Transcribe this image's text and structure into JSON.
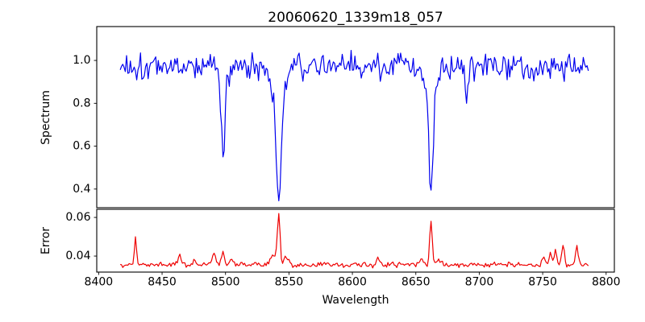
{
  "figure": {
    "title": "20060620_1339m18_057",
    "background": "#ffffff",
    "spine_color": "#000000",
    "tick_color": "#000000"
  },
  "chart_data": [
    {
      "type": "line",
      "title": "20060620_1339m18_057",
      "ylabel": "Spectrum",
      "series_name": "spectrum",
      "line_color": "#0000ee",
      "xlim": [
        8398.5,
        8806.5
      ],
      "ylim": [
        0.313,
        1.158
      ],
      "yticks": {
        "values": [
          0.4,
          0.6,
          0.8,
          1.0
        ],
        "labels": [
          "0.4",
          "0.6",
          "0.8",
          "1.0"
        ]
      },
      "x_start": 8417,
      "x_end": 8786,
      "x_step": 1,
      "continuum": 0.975,
      "noise_sigma": 0.03,
      "seed": 1337,
      "absorption_lines": [
        {
          "name": "Ca II 8498",
          "center": 8498,
          "core_depth": 0.31,
          "core_sigma": 1.3,
          "wing_depth": 0.12,
          "wing_sigma": 2.6,
          "min_value": 0.55
        },
        {
          "name": "Ca II 8542",
          "center": 8542,
          "core_depth": 0.43,
          "core_sigma": 1.7,
          "wing_depth": 0.21,
          "wing_sigma": 4.5,
          "min_value": 0.345
        },
        {
          "name": "Ca II 8662",
          "center": 8662,
          "core_depth": 0.4,
          "core_sigma": 1.6,
          "wing_depth": 0.19,
          "wing_sigma": 4.0,
          "min_value": 0.395
        },
        {
          "name": "line 8690",
          "center": 8690,
          "core_depth": 0.17,
          "core_sigma": 1.2,
          "wing_depth": 0.0,
          "wing_sigma": 1.0,
          "min_value": 0.8
        }
      ],
      "grid": false,
      "legend": null
    },
    {
      "type": "line",
      "ylabel": "Error",
      "xlabel": "Wavelength",
      "series_name": "error",
      "line_color": "#ee0000",
      "xlim": [
        8398.5,
        8806.5
      ],
      "ylim": [
        0.0317,
        0.0642
      ],
      "yticks": {
        "values": [
          0.04,
          0.06
        ],
        "labels": [
          "0.04",
          "0.06"
        ]
      },
      "xticks": {
        "values": [
          8400,
          8450,
          8500,
          8550,
          8600,
          8650,
          8700,
          8750,
          8800
        ],
        "labels": [
          "8400",
          "8450",
          "8500",
          "8550",
          "8600",
          "8650",
          "8700",
          "8750",
          "8800"
        ]
      },
      "x_start": 8417,
      "x_end": 8786,
      "x_step": 1,
      "baseline": 0.0355,
      "noise_sigma": 0.0007,
      "seed": 99,
      "peaks": [
        {
          "center": 8429,
          "height": 0.0145,
          "sigma": 0.8
        },
        {
          "center": 8464,
          "height": 0.0055,
          "sigma": 1.0
        },
        {
          "center": 8475,
          "height": 0.0028,
          "sigma": 1.0
        },
        {
          "center": 8491,
          "height": 0.006,
          "sigma": 1.4
        },
        {
          "center": 8498,
          "height": 0.007,
          "sigma": 1.2
        },
        {
          "center": 8505,
          "height": 0.0028,
          "sigma": 1.2
        },
        {
          "center": 8538,
          "height": 0.0045,
          "sigma": 2.5
        },
        {
          "center": 8542,
          "height": 0.0265,
          "sigma": 1.0
        },
        {
          "center": 8548,
          "height": 0.0035,
          "sigma": 2.0
        },
        {
          "center": 8620,
          "height": 0.004,
          "sigma": 1.2
        },
        {
          "center": 8655,
          "height": 0.003,
          "sigma": 1.0
        },
        {
          "center": 8662,
          "height": 0.0225,
          "sigma": 1.0
        },
        {
          "center": 8668,
          "height": 0.003,
          "sigma": 1.5
        },
        {
          "center": 8751,
          "height": 0.004,
          "sigma": 1.0
        },
        {
          "center": 8756,
          "height": 0.0065,
          "sigma": 1.0
        },
        {
          "center": 8760,
          "height": 0.008,
          "sigma": 1.0
        },
        {
          "center": 8766,
          "height": 0.01,
          "sigma": 1.0
        },
        {
          "center": 8777,
          "height": 0.01,
          "sigma": 1.0
        }
      ],
      "grid": false,
      "legend": null
    }
  ]
}
